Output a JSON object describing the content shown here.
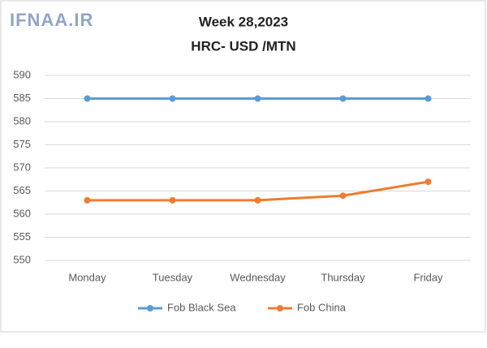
{
  "chart_data": {
    "type": "line",
    "watermark": "IFNAA.IR",
    "title": "Week 28,2023",
    "subtitle": "HRC- USD /MTN",
    "categories": [
      "Monday",
      "Tuesday",
      "Wednesday",
      "Thursday",
      "Friday"
    ],
    "series": [
      {
        "name": "Fob Black Sea",
        "color": "#5b9bd5",
        "values": [
          585,
          585,
          585,
          585,
          585
        ]
      },
      {
        "name": "Fob China",
        "color": "#ed7d31",
        "values": [
          563,
          563,
          563,
          564,
          567
        ]
      }
    ],
    "ylim": [
      550,
      590
    ],
    "yticks": [
      550,
      555,
      560,
      565,
      570,
      575,
      580,
      585,
      590
    ],
    "grid": true,
    "legend": "bottom"
  }
}
